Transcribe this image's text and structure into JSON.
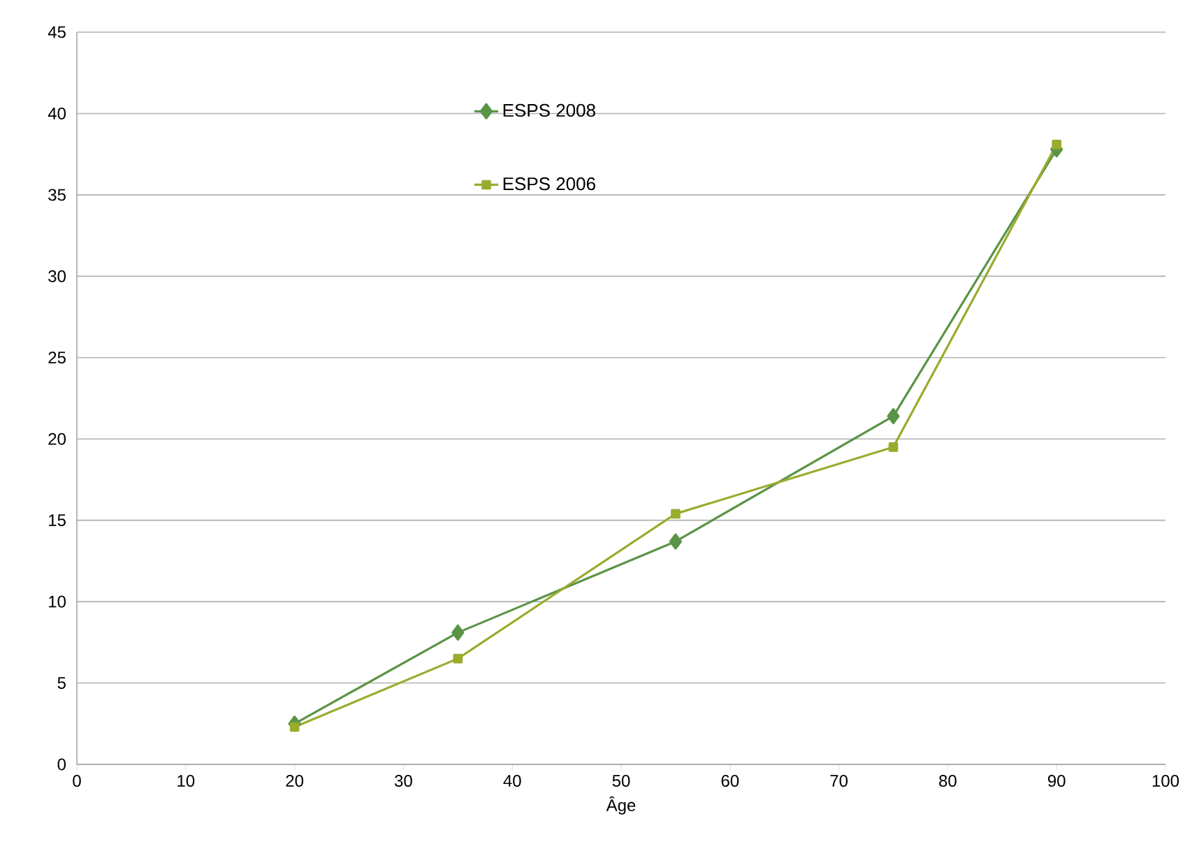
{
  "chart_data": {
    "type": "line",
    "xlabel": "Âge",
    "series": [
      {
        "name": "ESPS 2008",
        "color": "#5a9447",
        "marker": "diamond",
        "x": [
          20,
          35,
          55,
          75,
          90
        ],
        "values": [
          2.5,
          8.1,
          13.7,
          21.4,
          37.8
        ]
      },
      {
        "name": "ESPS 2006",
        "color": "#9aab2e",
        "marker": "square",
        "x": [
          20,
          35,
          55,
          75,
          90
        ],
        "values": [
          2.3,
          6.5,
          15.4,
          19.5,
          38.1
        ]
      }
    ],
    "xlim": [
      0,
      100
    ],
    "xticks": [
      0,
      10,
      20,
      30,
      40,
      50,
      60,
      70,
      80,
      90,
      100
    ],
    "ylim": [
      0,
      45
    ],
    "yticks": [
      0,
      5,
      10,
      15,
      20,
      25,
      30,
      35,
      40,
      45
    ],
    "grid": "y",
    "legend": "top"
  }
}
